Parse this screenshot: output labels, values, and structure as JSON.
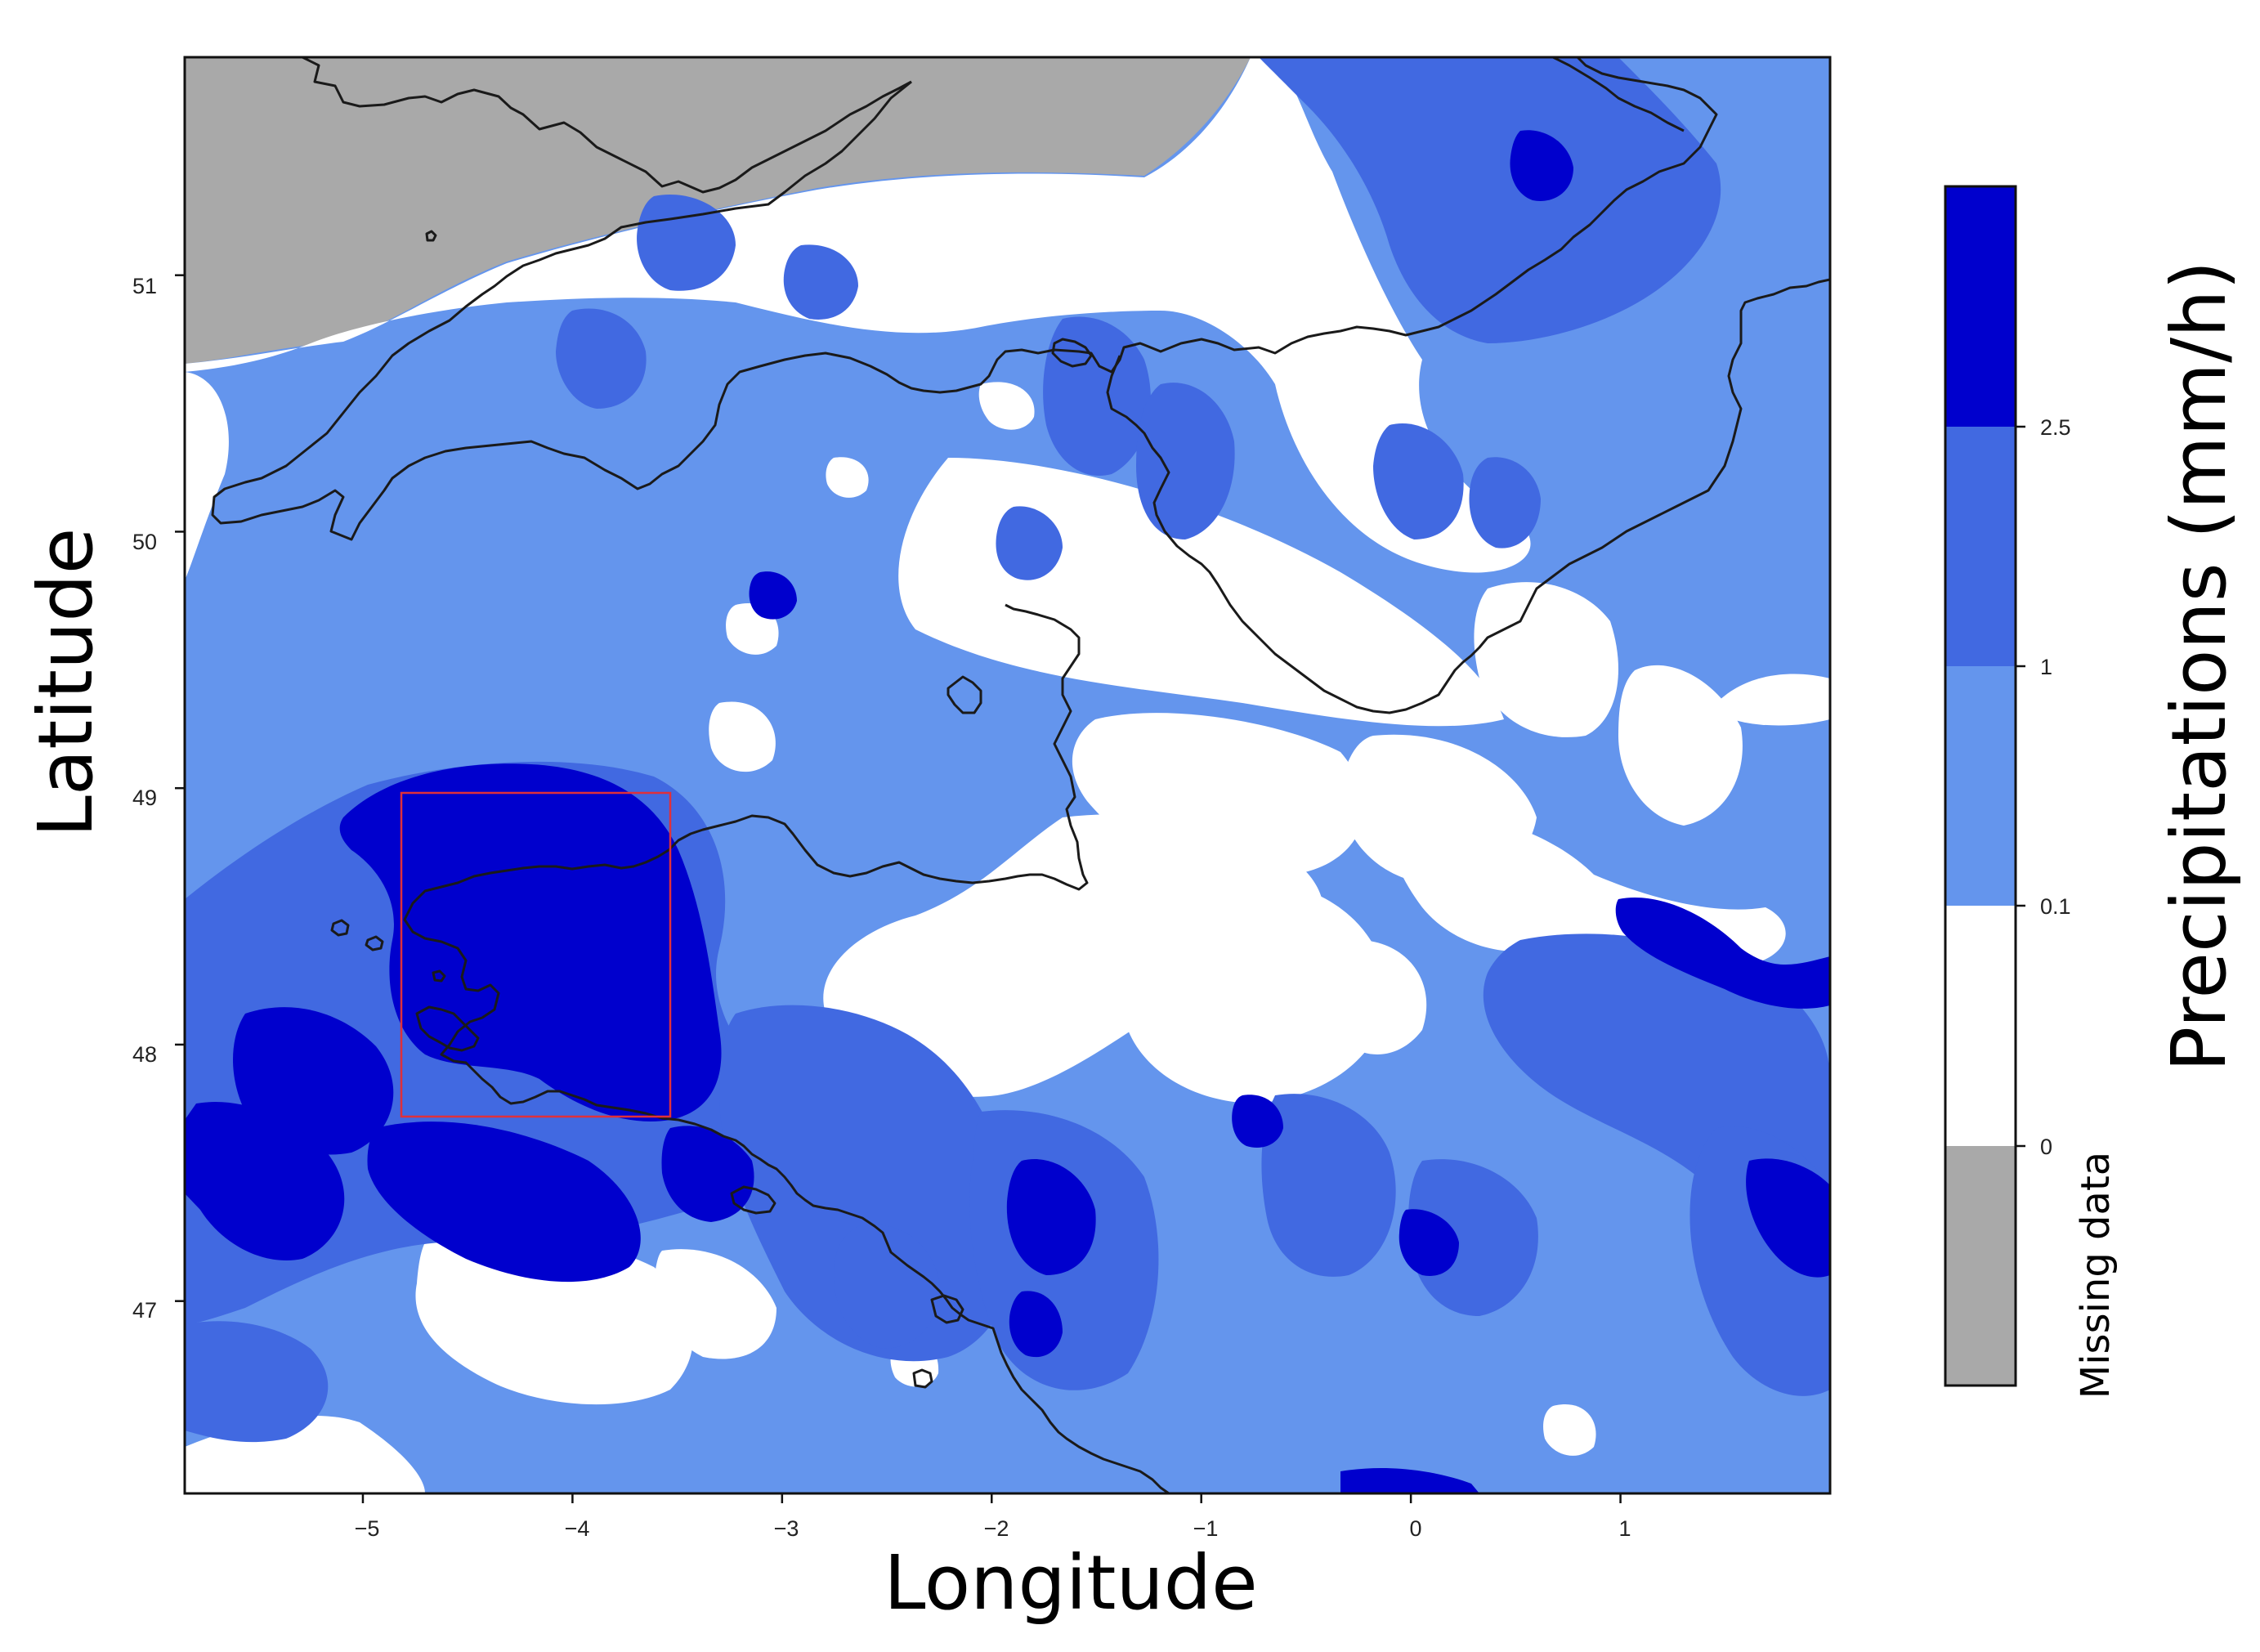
{
  "map": {
    "x_axis_label": "Longitude",
    "y_axis_label": "Latitude",
    "x_ticks": [
      "−5",
      "−4",
      "−3",
      "−2",
      "−1",
      "0",
      "1"
    ],
    "y_ticks": [
      "51",
      "50",
      "49",
      "48",
      "47"
    ],
    "x_tick_values": [
      -5,
      -4,
      -3,
      -2,
      -1,
      0,
      1
    ],
    "y_tick_values": [
      51,
      50,
      49,
      48,
      47
    ],
    "lon_range": [
      -5.85,
      2.0
    ],
    "lat_range": [
      46.25,
      51.85
    ],
    "highlight_box": {
      "lon": [
        -4.82,
        -3.53
      ],
      "lat": [
        47.73,
        49.0
      ],
      "color": "#e0303a"
    },
    "colors": {
      "missing": "#a9a9a9",
      "none": "#ffffff",
      "light": "#6495ed",
      "medium": "#4169e1",
      "heavy": "#0000cd",
      "coast": "#1a1a1a"
    }
  },
  "colorbar": {
    "title": "Precipitations (mm/h)",
    "tick_labels": [
      "2.5",
      "1",
      "0.1",
      "0"
    ],
    "missing_label": "Missing data",
    "bins": [
      {
        "label": "> 2.5",
        "color": "#0000cd"
      },
      {
        "label": "1 – 2.5",
        "color": "#4169e1"
      },
      {
        "label": "0.1 – 1",
        "color": "#6495ed"
      },
      {
        "label": "0 – 0.1",
        "color": "#ffffff"
      },
      {
        "label": "Missing data",
        "color": "#a9a9a9"
      }
    ]
  }
}
